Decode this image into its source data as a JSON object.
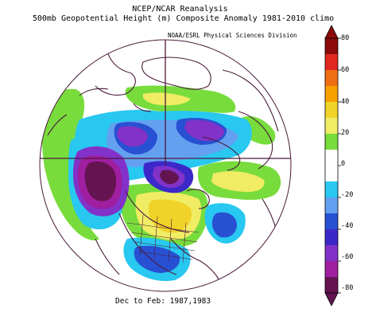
{
  "header": {
    "line1": "NCEP/NCAR Reanalysis",
    "line2": "500mb Geopotential Height (m) Composite Anomaly 1981-2010 climo"
  },
  "source_label": "NOAA/ESRL Physical Sciences Division",
  "footer": "Dec to Feb: 1987,1983",
  "colorbar": {
    "ticks": [
      "80",
      "60",
      "40",
      "20",
      "0",
      "-20",
      "-40",
      "-60",
      "-80"
    ],
    "colors": [
      "#8c0a0a",
      "#e0281e",
      "#f06e14",
      "#f8a000",
      "#f0d228",
      "#f0ec64",
      "#78dc3c",
      "#ffffff",
      "#ffffff",
      "#28c8f0",
      "#64a0f0",
      "#2850d2",
      "#3c28c8",
      "#8232c8",
      "#a01ea0",
      "#641450"
    ]
  },
  "map": {
    "type": "polar-stereographic-anomaly-map",
    "hemisphere": "northern",
    "colors": {
      "strong_negative": "#641450",
      "negative_purple": "#a01ea0",
      "negative_violet": "#8232c8",
      "negative_blue": "#3c28c8",
      "negative_mid_blue": "#2850d2",
      "negative_light_blue": "#64a0f0",
      "negative_cyan": "#28c8f0",
      "positive_green": "#78dc3c",
      "positive_yellow": "#f0ec64",
      "positive_gold": "#f0d228",
      "coastline": "#4a1a3a"
    }
  }
}
